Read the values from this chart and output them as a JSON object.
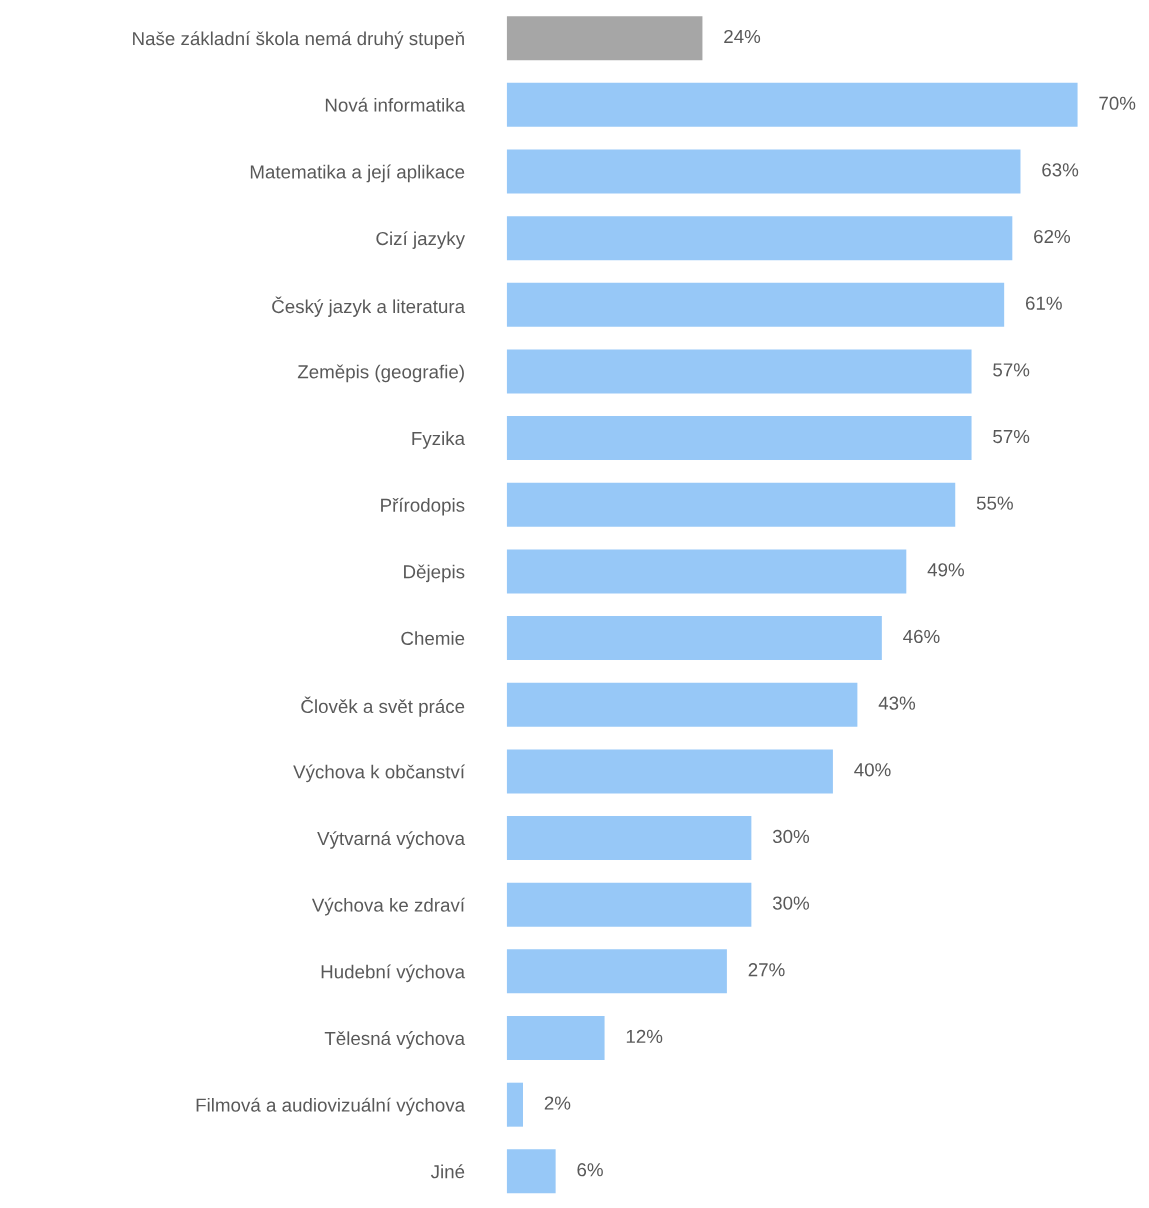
{
  "chart_data": {
    "type": "bar",
    "orientation": "horizontal",
    "categories": [
      "Naše základní škola nemá druhý stupeň",
      "Nová informatika",
      "Matematika a její aplikace",
      "Cizí jazyky",
      "Český jazyk a literatura",
      "Zeměpis (geografie)",
      "Fyzika",
      "Přírodopis",
      "Dějepis",
      "Chemie",
      "Člověk a svět práce",
      "Výchova k občanství",
      "Výtvarná výchova",
      "Výchova ke zdraví",
      "Hudební výchova",
      "Tělesná výchova",
      "Filmová a audiovizuální výchova",
      "Jiné"
    ],
    "values": [
      24,
      70,
      63,
      62,
      61,
      57,
      57,
      55,
      49,
      46,
      43,
      40,
      30,
      30,
      27,
      12,
      2,
      6
    ],
    "value_labels": [
      "24%",
      "70%",
      "63%",
      "62%",
      "61%",
      "57%",
      "57%",
      "55%",
      "49%",
      "46%",
      "43%",
      "40%",
      "30%",
      "30%",
      "27%",
      "12%",
      "2%",
      "6%"
    ],
    "colors": [
      "#a6a6a6",
      "#97c8f7",
      "#97c8f7",
      "#97c8f7",
      "#97c8f7",
      "#97c8f7",
      "#97c8f7",
      "#97c8f7",
      "#97c8f7",
      "#97c8f7",
      "#97c8f7",
      "#97c8f7",
      "#97c8f7",
      "#97c8f7",
      "#97c8f7",
      "#97c8f7",
      "#97c8f7",
      "#97c8f7"
    ],
    "grid": false,
    "legend": false
  }
}
